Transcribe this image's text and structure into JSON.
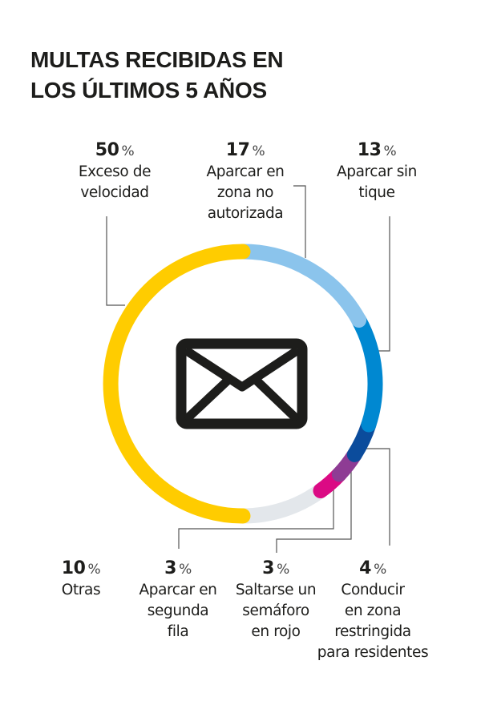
{
  "title": {
    "line1": "MULTAS RECIBIDAS EN",
    "line2": "LOS ÚLTIMOS 5 AÑOS"
  },
  "icon": "envelope-icon",
  "chart_data": {
    "type": "pie",
    "variant": "donut",
    "title": "MULTAS RECIBIDAS EN LOS ÚLTIMOS 5 AÑOS",
    "unit": "%",
    "start": "top, clockwise",
    "slices": [
      {
        "label": "Aparcar en\nzona no\nautorizada",
        "value": 17,
        "color": "#8BC4EC"
      },
      {
        "label": "Aparcar sin\ntique",
        "value": 13,
        "color": "#0088D1"
      },
      {
        "label": "Conducir\nen zona\nrestringida\npara residentes",
        "value": 4,
        "color": "#0B4C9C"
      },
      {
        "label": "Saltarse un\nsemáforo\nen rojo",
        "value": 3,
        "color": "#8E3C94"
      },
      {
        "label": "Aparcar en\nsegunda\nfila",
        "value": 3,
        "color": "#DB0A84"
      },
      {
        "label": "Otras",
        "value": 10,
        "color": "#E3E7EB"
      },
      {
        "label": "Exceso de\nvelocidad",
        "value": 50,
        "color": "#FFCC00"
      }
    ]
  }
}
